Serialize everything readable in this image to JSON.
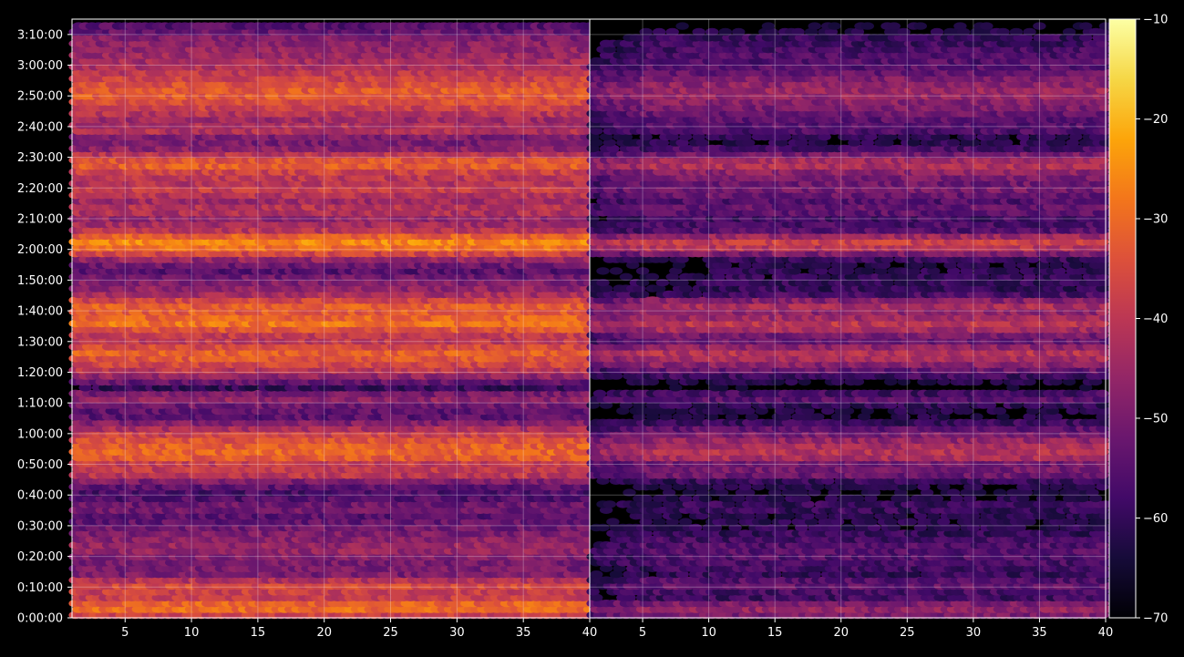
{
  "chart_data": {
    "type": "heatmap",
    "title": "",
    "xlabel": "",
    "ylabel": "",
    "panels": [
      {
        "name": "",
        "xlim": [
          1,
          40
        ],
        "x_ticks": [
          "5",
          "10",
          "15",
          "20",
          "25",
          "30",
          "35",
          "40"
        ]
      },
      {
        "name": "",
        "xlim": [
          1,
          40
        ],
        "x_ticks": [
          "5",
          "10",
          "15",
          "20",
          "25",
          "30",
          "35",
          "40"
        ]
      }
    ],
    "y_range_seconds": [
      0,
      11700
    ],
    "y_ticks": [
      "0:00:00",
      "0:10:00",
      "0:20:00",
      "0:30:00",
      "0:40:00",
      "0:50:00",
      "1:00:00",
      "1:10:00",
      "1:20:00",
      "1:30:00",
      "1:40:00",
      "1:50:00",
      "2:00:00",
      "2:10:00",
      "2:20:00",
      "2:30:00",
      "2:40:00",
      "2:50:00",
      "3:00:00",
      "3:10:00"
    ],
    "colorbar": {
      "ticks": [
        "−10",
        "−20",
        "−30",
        "−40",
        "−50",
        "−60",
        "−70"
      ],
      "vmin": -70,
      "vmax": -10,
      "colormap": "inferno"
    },
    "grid": true,
    "band_profile": {
      "description_keys": [
        "time_minutes",
        "left_level",
        "right_level"
      ],
      "rows": [
        [
          1,
          -38,
          -50
        ],
        [
          3.5,
          -27,
          -45
        ],
        [
          7,
          -40,
          -60
        ],
        [
          11,
          -35,
          -52
        ],
        [
          14,
          -50,
          -60
        ],
        [
          19,
          -50,
          -56
        ],
        [
          22.5,
          -45,
          -55
        ],
        [
          26,
          -48,
          -58
        ],
        [
          30,
          -52,
          -62
        ],
        [
          33,
          -55,
          -63
        ],
        [
          36,
          -50,
          -58
        ],
        [
          40,
          -58,
          -65
        ],
        [
          44,
          -52,
          -62
        ],
        [
          47,
          -38,
          -50
        ],
        [
          50,
          -40,
          -52
        ],
        [
          53,
          -30,
          -40
        ],
        [
          56,
          -32,
          -43
        ],
        [
          59,
          -36,
          -48
        ],
        [
          62,
          -44,
          -55
        ],
        [
          66,
          -56,
          -65
        ],
        [
          69,
          -52,
          -62
        ],
        [
          72,
          -45,
          -52
        ],
        [
          75,
          -60,
          -68
        ],
        [
          80,
          -42,
          -55
        ],
        [
          83.5,
          -35,
          -45
        ],
        [
          86,
          -31,
          -40
        ],
        [
          91,
          -42,
          -55
        ],
        [
          93.5,
          -35,
          -45
        ],
        [
          96,
          -28,
          -40
        ],
        [
          99,
          -33,
          -48
        ],
        [
          102,
          -32,
          -42
        ],
        [
          106,
          -45,
          -60
        ],
        [
          110,
          -50,
          -60
        ],
        [
          113,
          -55,
          -62
        ],
        [
          116,
          -50,
          -64
        ],
        [
          120,
          -30,
          -42
        ],
        [
          123,
          -25,
          -37
        ],
        [
          126,
          -40,
          -55
        ],
        [
          130,
          -47,
          -58
        ],
        [
          133,
          -40,
          -52
        ],
        [
          136,
          -45,
          -56
        ],
        [
          139,
          -38,
          -50
        ],
        [
          142,
          -42,
          -52
        ],
        [
          145,
          -38,
          -48
        ],
        [
          148,
          -30,
          -40
        ],
        [
          153,
          -48,
          -58
        ],
        [
          156,
          -52,
          -64
        ],
        [
          159,
          -40,
          -55
        ],
        [
          162,
          -45,
          -55
        ],
        [
          166,
          -38,
          -50
        ],
        [
          168,
          -35,
          -48
        ],
        [
          171,
          -32,
          -45
        ],
        [
          174,
          -35,
          -47
        ],
        [
          179,
          -42,
          -55
        ],
        [
          183,
          -45,
          -56
        ],
        [
          186,
          -47,
          -58
        ],
        [
          189,
          -49,
          -60
        ],
        [
          192,
          -55,
          -66
        ]
      ]
    }
  }
}
